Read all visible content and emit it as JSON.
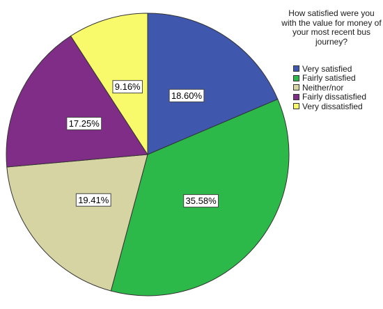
{
  "chart_data": {
    "type": "pie",
    "title": "",
    "legend_title": "How satisfied were you with the value for money of your most recent bus journey?",
    "legend_position": "top-right",
    "categories": [
      "Very satisfied",
      "Fairly satisfied",
      "Neither/nor",
      "Fairly dissatisfied",
      "Very dissatisfied"
    ],
    "values": [
      18.6,
      35.58,
      19.41,
      17.25,
      9.16
    ],
    "labels": [
      "18.60%",
      "35.58%",
      "19.41%",
      "17.25%",
      "9.16%"
    ],
    "colors": [
      "#3f57ad",
      "#2db84a",
      "#d7d4a3",
      "#7f2d86",
      "#f8f96b"
    ],
    "start_angle_deg": 0,
    "direction": "clockwise"
  }
}
